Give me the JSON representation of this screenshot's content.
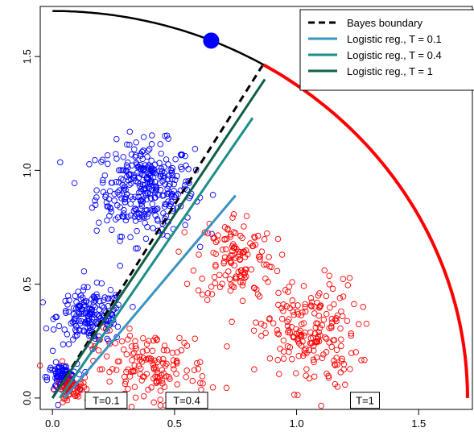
{
  "chart_data": {
    "type": "scatter",
    "xlim": [
      -0.05,
      1.72
    ],
    "ylim": [
      -0.05,
      1.72
    ],
    "x_ticks": [
      "0.0",
      "0.5",
      "1.0",
      "1.5"
    ],
    "y_ticks": [
      "0.0",
      "0.5",
      "1.0",
      "1.5"
    ],
    "grid": false,
    "legend_position": "top-right",
    "legend": [
      {
        "label": "Bayes boundary",
        "color": "#000000",
        "style": "dashed"
      },
      {
        "label": "Logistic reg., T = 0.1",
        "color": "#3b93c0",
        "style": "solid"
      },
      {
        "label": "Logistic reg., T = 0.4",
        "color": "#1b8f8a",
        "style": "solid"
      },
      {
        "label": "Logistic reg., T = 1",
        "color": "#0f5f4a",
        "style": "solid"
      }
    ],
    "arc": {
      "radius": 1.7,
      "color_upper": "#000000",
      "color_lower": "#ff0000",
      "split_angle_deg": 59.4
    },
    "marker_point": {
      "x": 0.65,
      "y": 1.57,
      "color": "#0000ff"
    },
    "lines": [
      {
        "name": "Bayes boundary",
        "color": "#000000",
        "dashed": true,
        "points": [
          [
            0.0,
            0.0
          ],
          [
            0.86,
            1.46
          ]
        ]
      },
      {
        "name": "Logistic reg., T = 0.1",
        "color": "#3b93c0",
        "dashed": false,
        "points": [
          [
            0.05,
            0.0
          ],
          [
            0.75,
            0.89
          ]
        ]
      },
      {
        "name": "Logistic reg., T = 0.4",
        "color": "#1b8f8a",
        "dashed": false,
        "points": [
          [
            0.03,
            0.0
          ],
          [
            0.82,
            1.23
          ]
        ]
      },
      {
        "name": "Logistic reg., T = 1",
        "color": "#0f5f4a",
        "dashed": false,
        "points": [
          [
            0.0,
            0.0
          ],
          [
            0.87,
            1.4
          ]
        ]
      }
    ],
    "clusters": [
      {
        "class": "blue",
        "color": "#0000ff",
        "cx": 0.38,
        "cy": 0.92,
        "sx": 0.1,
        "sy": 0.1,
        "n": 340
      },
      {
        "class": "blue",
        "color": "#0000ff",
        "cx": 0.16,
        "cy": 0.36,
        "sx": 0.07,
        "sy": 0.06,
        "n": 180
      },
      {
        "class": "blue",
        "color": "#0000ff",
        "cx": 0.04,
        "cy": 0.09,
        "sx": 0.03,
        "sy": 0.03,
        "n": 90
      },
      {
        "class": "red",
        "color": "#ff0000",
        "cx": 0.75,
        "cy": 0.62,
        "sx": 0.08,
        "sy": 0.1,
        "n": 130
      },
      {
        "class": "red",
        "color": "#ff0000",
        "cx": 1.05,
        "cy": 0.28,
        "sx": 0.1,
        "sy": 0.12,
        "n": 200
      },
      {
        "class": "red",
        "color": "#ff0000",
        "cx": 0.4,
        "cy": 0.13,
        "sx": 0.12,
        "sy": 0.08,
        "n": 160
      },
      {
        "class": "red",
        "color": "#ff0000",
        "cx": 0.08,
        "cy": 0.04,
        "sx": 0.03,
        "sy": 0.02,
        "n": 60
      }
    ],
    "t_labels": [
      {
        "text": "T=0.1",
        "x": 0.22,
        "y": -0.01
      },
      {
        "text": "T=0.4",
        "x": 0.55,
        "y": -0.01
      },
      {
        "text": "T=1",
        "x": 1.28,
        "y": -0.01
      }
    ]
  }
}
